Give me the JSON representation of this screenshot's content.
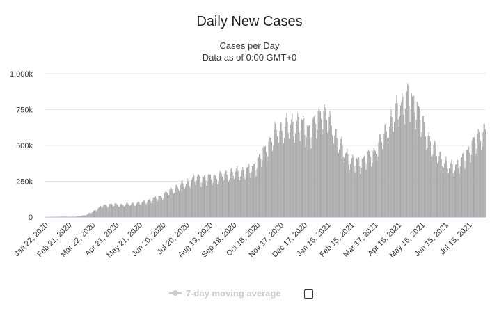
{
  "chart_data": {
    "type": "bar",
    "title": "Daily New Cases",
    "subtitle_lines": [
      "Cases per Day",
      "Data as of 0:00 GMT+0"
    ],
    "xlabel": "",
    "ylabel": "",
    "ylim": [
      0,
      1000000
    ],
    "y_ticks": [
      {
        "value": 0,
        "label": "0"
      },
      {
        "value": 250000,
        "label": "250k"
      },
      {
        "value": 500000,
        "label": "500k"
      },
      {
        "value": 750000,
        "label": "750k"
      },
      {
        "value": 1000000,
        "label": "1,000k"
      }
    ],
    "x_range": [
      "2020-01-22",
      "2021-08-05"
    ],
    "x_ticks": [
      "Jan 22, 2020",
      "Feb 21, 2020",
      "Mar 22, 2020",
      "Apr 21, 2020",
      "May 21, 2020",
      "Jun 20, 2020",
      "Jul 20, 2020",
      "Aug 19, 2020",
      "Sep 18, 2020",
      "Oct 18, 2020",
      "Nov 17, 2020",
      "Dec 17, 2020",
      "Jan 16, 2021",
      "Feb 15, 2021",
      "Mar 17, 2021",
      "Apr 16, 2021",
      "May 16, 2021",
      "Jun 15, 2021",
      "Jul 15, 2021"
    ],
    "grid": true,
    "bar_color": "#a6a6a6",
    "series": [
      {
        "points": [
          [
            "2020-01-22",
            0
          ],
          [
            "2020-02-13",
            3000
          ],
          [
            "2020-03-01",
            2000
          ],
          [
            "2020-03-15",
            15000
          ],
          [
            "2020-03-25",
            45000
          ],
          [
            "2020-04-05",
            80000
          ],
          [
            "2020-04-15",
            88000
          ],
          [
            "2020-04-25",
            85000
          ],
          [
            "2020-05-10",
            90000
          ],
          [
            "2020-05-25",
            100000
          ],
          [
            "2020-06-05",
            120000
          ],
          [
            "2020-06-20",
            150000
          ],
          [
            "2020-07-05",
            200000
          ],
          [
            "2020-07-20",
            235000
          ],
          [
            "2020-08-01",
            270000
          ],
          [
            "2020-08-15",
            270000
          ],
          [
            "2020-09-01",
            285000
          ],
          [
            "2020-09-15",
            305000
          ],
          [
            "2020-10-01",
            315000
          ],
          [
            "2020-10-15",
            350000
          ],
          [
            "2020-10-30",
            480000
          ],
          [
            "2020-11-10",
            580000
          ],
          [
            "2020-11-25",
            630000
          ],
          [
            "2020-12-10",
            650000
          ],
          [
            "2020-12-25",
            600000
          ],
          [
            "2021-01-08",
            730000
          ],
          [
            "2021-01-16",
            690000
          ],
          [
            "2021-01-25",
            580000
          ],
          [
            "2021-02-05",
            460000
          ],
          [
            "2021-02-18",
            380000
          ],
          [
            "2021-03-01",
            390000
          ],
          [
            "2021-03-17",
            450000
          ],
          [
            "2021-04-01",
            600000
          ],
          [
            "2021-04-16",
            760000
          ],
          [
            "2021-04-28",
            830000
          ],
          [
            "2021-05-08",
            790000
          ],
          [
            "2021-05-20",
            600000
          ],
          [
            "2021-06-01",
            470000
          ],
          [
            "2021-06-15",
            370000
          ],
          [
            "2021-06-25",
            350000
          ],
          [
            "2021-07-05",
            380000
          ],
          [
            "2021-07-15",
            470000
          ],
          [
            "2021-07-28",
            560000
          ],
          [
            "2021-08-05",
            600000
          ]
        ]
      }
    ]
  },
  "legend": {
    "label": "7-day moving average"
  }
}
